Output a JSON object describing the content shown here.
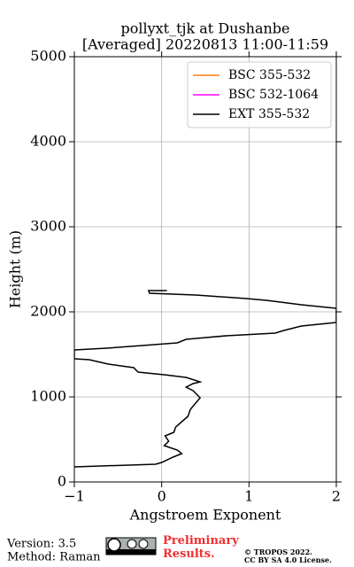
{
  "chart_data": {
    "type": "line",
    "title": "pollyxt_tjk at Dushanbe",
    "subtitle": "[Averaged] 20220813 11:00-11:59",
    "x_label": "Angstroem Exponent",
    "y_label": "Height (m)",
    "xlim": [
      -1,
      2
    ],
    "xticks": [
      {
        "value": -1,
        "label": "−1"
      },
      0,
      1,
      2
    ],
    "ylim": [
      0,
      5000
    ],
    "yticks": [
      0,
      1000,
      2000,
      3000,
      4000,
      5000
    ],
    "grid": true,
    "legend": "upper right",
    "series": [
      {
        "name": "BSC 355-532",
        "color": "#ff7f0e",
        "x": [],
        "y": []
      },
      {
        "name": "BSC 532-1064",
        "color": "#ff00ff",
        "x": [],
        "y": []
      },
      {
        "name": "EXT 355-532",
        "color": "#000000",
        "x": [
          -1.0,
          -0.07,
          0,
          0.13,
          0.23,
          0.18,
          0.03,
          0.08,
          0.04,
          0.14,
          0.16,
          0.23,
          0.3,
          0.33,
          0.39,
          0.44,
          0.36,
          0.28,
          0.36,
          0.44,
          0.28,
          0.03,
          -0.27,
          -0.32,
          -0.61,
          -0.83,
          -1.0,
          -1.0,
          -0.63,
          -0.22,
          0.18,
          0.28,
          0.74,
          1.3,
          1.4,
          1.6,
          2.0,
          2.0,
          1.6,
          1.2,
          0.97,
          0.39,
          -0.14,
          -0.15,
          0.06
        ],
        "y": [
          177,
          208,
          229,
          292,
          333,
          375,
          427,
          479,
          542,
          583,
          646,
          708,
          771,
          854,
          927,
          990,
          1073,
          1115,
          1156,
          1177,
          1229,
          1260,
          1292,
          1344,
          1385,
          1438,
          1448,
          1552,
          1573,
          1604,
          1635,
          1677,
          1719,
          1750,
          1781,
          1833,
          1875,
          2042,
          2083,
          2135,
          2156,
          2198,
          2219,
          2250,
          2250
        ]
      }
    ]
  },
  "footer": {
    "version": "Version: 3.5",
    "method": "Method: Raman",
    "status": "Preliminary Results.",
    "copyright": "© TROPOS 2022.",
    "license": "CC BY SA 4.0 License."
  }
}
